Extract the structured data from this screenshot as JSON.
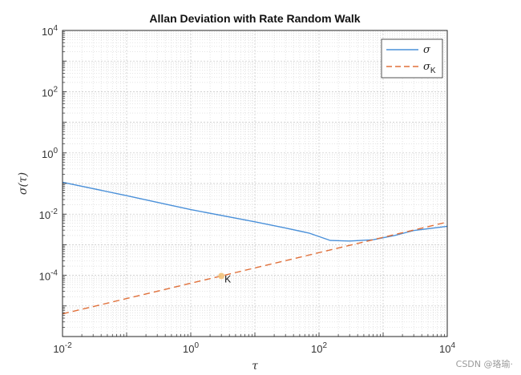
{
  "chart_data": {
    "type": "line",
    "title": "Allan Deviation with Rate Random Walk",
    "xlabel": "τ",
    "ylabel": "σ(τ)",
    "xscale": "log",
    "yscale": "log",
    "xlim": [
      0.01,
      10000
    ],
    "ylim": [
      1e-06,
      10000
    ],
    "x_ticks": [
      {
        "value": 0.01,
        "base": "10",
        "exp": "-2"
      },
      {
        "value": 1,
        "base": "10",
        "exp": "0"
      },
      {
        "value": 100,
        "base": "10",
        "exp": "2"
      },
      {
        "value": 10000,
        "base": "10",
        "exp": "4"
      }
    ],
    "y_ticks": [
      {
        "value": 0.0001,
        "base": "10",
        "exp": "-4"
      },
      {
        "value": 0.01,
        "base": "10",
        "exp": "-2"
      },
      {
        "value": 1,
        "base": "10",
        "exp": "0"
      },
      {
        "value": 100,
        "base": "10",
        "exp": "2"
      },
      {
        "value": 10000,
        "base": "10",
        "exp": "4"
      }
    ],
    "grid": true,
    "minor_grid": true,
    "legend_position": "top-right",
    "series": [
      {
        "name": "σ",
        "style": "solid",
        "color": "#4a90d9",
        "x": [
          0.01,
          0.1,
          1,
          10,
          30,
          70,
          150,
          300,
          700,
          1500,
          3000,
          10000
        ],
        "y": [
          0.11,
          0.04,
          0.014,
          0.0056,
          0.0035,
          0.0024,
          0.00138,
          0.00132,
          0.00145,
          0.002,
          0.0029,
          0.004
        ]
      },
      {
        "name": "σ",
        "legend_subscript": "K",
        "style": "dashed",
        "color": "#e0703a",
        "x": [
          0.01,
          10000
        ],
        "y": [
          5.5e-06,
          0.0055
        ]
      }
    ],
    "annotations": [
      {
        "text": "K",
        "x": 3,
        "y": 9.49e-05,
        "marker_color": "#f2c27a"
      }
    ]
  },
  "watermark": "CSDN @珞瑜·"
}
